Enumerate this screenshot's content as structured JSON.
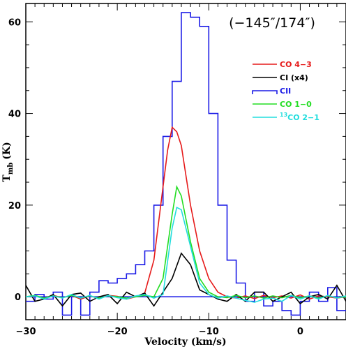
{
  "chart_data": {
    "type": "line",
    "xlabel": "Velocity (km/s)",
    "ylabel": "T",
    "ylabel_sub": "mb",
    "ylabel_unit": "(K)",
    "annotation": "(−145″/174″)",
    "xlim": [
      -30,
      5
    ],
    "ylim": [
      -5,
      64
    ],
    "x_ticks": [
      -30,
      -20,
      -10,
      0
    ],
    "x_tick_labels": [
      "−30",
      "−20",
      "−10",
      "0"
    ],
    "y_ticks": [
      0,
      20,
      40,
      60
    ],
    "y_tick_labels": [
      "0",
      "20",
      "40",
      "60"
    ],
    "zero_line": true,
    "legend_position": "top-right",
    "series": [
      {
        "name": "CII",
        "color": "#1a1ae6",
        "style": "step",
        "x": [
          -30,
          -29,
          -28,
          -27,
          -26,
          -25,
          -24,
          -23,
          -22,
          -21,
          -20,
          -19,
          -18,
          -17,
          -16,
          -15,
          -14,
          -13,
          -12,
          -11,
          -10,
          -9,
          -8,
          -7,
          -6,
          -5,
          -4,
          -3,
          -2,
          -1,
          0,
          1,
          2,
          3,
          4
        ],
        "values": [
          -1,
          0.5,
          -0.5,
          1,
          -4,
          0,
          -4,
          1,
          3.5,
          3,
          4,
          5,
          7,
          10,
          20,
          35,
          47,
          62,
          61,
          59,
          40,
          20,
          8,
          3,
          -1,
          1,
          -2,
          -1,
          -3,
          -4,
          -1,
          1,
          -1,
          2,
          -3
        ]
      },
      {
        "name": "CO 4–3",
        "color": "#e61a1a",
        "style": "line",
        "x": [
          -30,
          -29,
          -28,
          -27,
          -26,
          -25,
          -24,
          -23,
          -22,
          -21,
          -20,
          -19,
          -18,
          -17,
          -16,
          -15,
          -14.5,
          -14,
          -13.5,
          -13,
          -12,
          -11,
          -10,
          -9,
          -8,
          -7,
          -6,
          -5,
          -4,
          -3,
          -2,
          -1,
          0,
          1,
          2,
          3,
          4,
          5
        ],
        "values": [
          0,
          0.2,
          -0.3,
          0.3,
          -0.2,
          0.3,
          -0.5,
          0.2,
          -0.4,
          0.3,
          0.1,
          -0.5,
          0,
          0.8,
          8,
          24,
          32,
          37,
          36,
          33,
          20,
          10,
          4,
          1,
          0,
          -0.3,
          0.2,
          -0.4,
          0.3,
          -0.2,
          0.2,
          -0.3,
          0.4,
          -0.5,
          0.2,
          0,
          -0.3,
          0
        ]
      },
      {
        "name": "CI (x4)",
        "color": "#000000",
        "style": "line",
        "x": [
          -30,
          -29,
          -28,
          -27,
          -26,
          -25,
          -24,
          -23,
          -22,
          -21,
          -20,
          -19,
          -18,
          -17,
          -16,
          -15,
          -14,
          -13,
          -12,
          -11,
          -10,
          -9,
          -8,
          -7,
          -6,
          -5,
          -4,
          -3,
          -2,
          -1,
          0,
          1,
          2,
          3,
          4,
          5
        ],
        "values": [
          2.5,
          -1,
          -0.5,
          0.5,
          -2,
          0.5,
          0.8,
          -1,
          0,
          0.5,
          -1.5,
          1,
          0,
          0.8,
          -2,
          1,
          4,
          9.5,
          7,
          1.5,
          0.5,
          -0.5,
          -1,
          0.5,
          -1,
          1,
          1,
          -1,
          0,
          1,
          -1.5,
          0,
          0.5,
          -0.5,
          2.5,
          -1
        ]
      },
      {
        "name": "CO 1–0",
        "color": "#22dd22",
        "style": "line",
        "x": [
          -30,
          -29,
          -28,
          -27,
          -26,
          -25,
          -24,
          -23,
          -22,
          -21,
          -20,
          -19,
          -18,
          -17,
          -16,
          -15,
          -14,
          -13.5,
          -13,
          -12,
          -11,
          -10,
          -9,
          -8,
          -7,
          -6,
          -5,
          -4,
          -3,
          -2,
          -1,
          0,
          1,
          2,
          3,
          4,
          5
        ],
        "values": [
          0,
          0.3,
          -0.3,
          0.2,
          -0.2,
          0.3,
          -0.2,
          0.2,
          -0.3,
          0.2,
          0,
          -0.3,
          0,
          0.3,
          0,
          4,
          18,
          24,
          22,
          12,
          4,
          1,
          0,
          -0.2,
          0.3,
          -0.2,
          0.2,
          -0.3,
          0.2,
          -0.2,
          0.3,
          -0.2,
          0.2,
          -0.3,
          0.2,
          -0.2,
          0
        ]
      },
      {
        "name": "13CO 2–1",
        "color": "#22dddd",
        "style": "line",
        "x": [
          -30,
          -29,
          -28,
          -27,
          -26,
          -25,
          -24,
          -23,
          -22,
          -21,
          -20,
          -19,
          -18,
          -17,
          -16,
          -15,
          -14,
          -13.5,
          -13,
          -12,
          -11,
          -10,
          -9,
          -8,
          -7,
          -6,
          -5,
          -4,
          -3,
          -2,
          -1,
          0,
          1,
          2,
          3,
          4,
          5
        ],
        "values": [
          0,
          0.2,
          -0.5,
          0.2,
          -0.3,
          0.5,
          -0.3,
          0.3,
          -0.5,
          0.3,
          -0.2,
          -0.5,
          0.2,
          0.5,
          -0.3,
          0.5,
          15,
          19.5,
          19,
          11,
          3,
          0.5,
          -0.3,
          0.2,
          -0.3,
          -0.8,
          -1.2,
          -0.5,
          -0.3,
          -1,
          0.3,
          -0.5,
          0.2,
          -0.5,
          0.3,
          -0.3,
          0.2
        ]
      }
    ],
    "legend": [
      {
        "label": "CO 4−3",
        "color": "#e61a1a",
        "style": "line"
      },
      {
        "label": "CI (x4)",
        "color": "#000000",
        "style": "line"
      },
      {
        "label": "CII",
        "color": "#1a1ae6",
        "style": "step"
      },
      {
        "label": "CO 1−0",
        "color": "#22dd22",
        "style": "line"
      },
      {
        "label": "CO 2−1",
        "sup": "13",
        "color": "#22dddd",
        "style": "line"
      }
    ]
  }
}
